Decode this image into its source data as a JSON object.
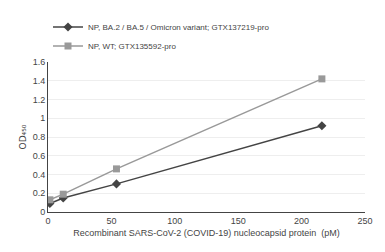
{
  "chart_data": {
    "type": "line",
    "xlabel": "Recombinant SARS-CoV-2 (COVID-19) nucleocapsid protein  (pM)",
    "ylabel": "OD₄₅₀",
    "x": [
      1.5,
      12,
      54,
      216
    ],
    "series": [
      {
        "name": "NP, BA.2 / BA.5 / Omicron variant; GTX137219-pro",
        "color": "#444444",
        "marker": "diamond",
        "values": [
          0.09,
          0.15,
          0.3,
          0.92
        ]
      },
      {
        "name": "NP, WT; GTX135592-pro",
        "color": "#999999",
        "marker": "square",
        "values": [
          0.13,
          0.19,
          0.46,
          1.42
        ]
      }
    ],
    "xlim": [
      0,
      250
    ],
    "xticks": [
      0,
      50,
      100,
      150,
      200,
      250
    ],
    "ylim": [
      0,
      1.6
    ],
    "yticks": [
      0,
      0.2,
      0.4,
      0.6,
      0.8,
      1,
      1.2,
      1.4,
      1.6
    ],
    "grid": "y",
    "legend": "upper left"
  }
}
